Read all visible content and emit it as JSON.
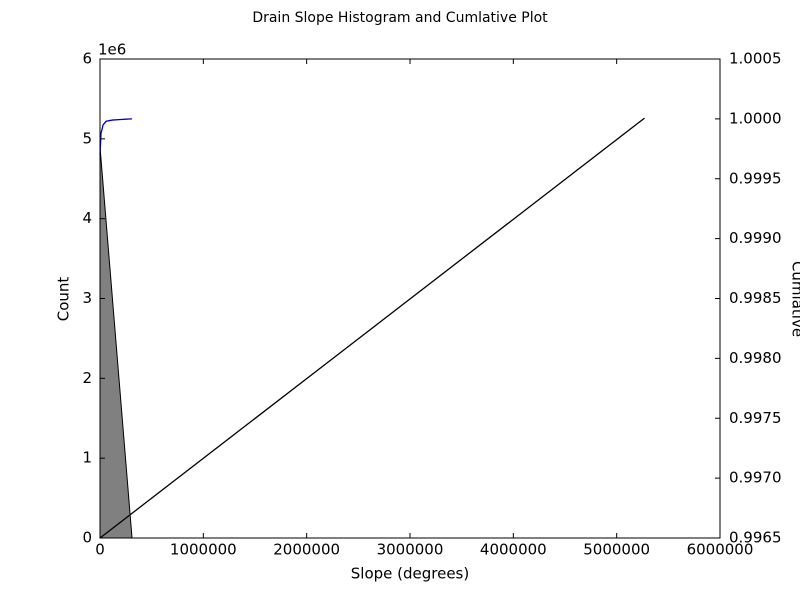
{
  "chart_data": {
    "type": "combo",
    "title": "Drain Slope Histogram and Cumlative Plot",
    "xlabel": "Slope (degrees)",
    "ylabel": "Count",
    "y2label": "Cumlative",
    "y_offset_label": "1e6",
    "xlim": [
      0,
      6000000
    ],
    "xticks": [
      0,
      1000000,
      2000000,
      3000000,
      4000000,
      5000000,
      6000000
    ],
    "ylim": [
      0,
      6000000
    ],
    "yticks": [
      {
        "value": 0,
        "label": "0"
      },
      {
        "value": 1000000,
        "label": "1"
      },
      {
        "value": 2000000,
        "label": "2"
      },
      {
        "value": 3000000,
        "label": "3"
      },
      {
        "value": 4000000,
        "label": "4"
      },
      {
        "value": 5000000,
        "label": "5"
      },
      {
        "value": 6000000,
        "label": "6"
      }
    ],
    "y2lim": [
      0.9965,
      1.0005
    ],
    "y2ticks": [
      0.9965,
      {
        "value": 0.997,
        "label": "0.9970"
      },
      0.9975,
      {
        "value": 0.998,
        "label": "0.9980"
      },
      0.9985,
      {
        "value": 0.999,
        "label": "0.9990"
      },
      0.9995,
      {
        "value": 1,
        "label": "1.0000"
      },
      1.0005
    ],
    "series": [
      {
        "kind": "area",
        "color": "#808080",
        "x": [
          0,
          0,
          310000
        ],
        "values": [
          0,
          4900000,
          0
        ]
      },
      {
        "kind": "line",
        "color": "#000000",
        "x": [
          0,
          5270000
        ],
        "values": [
          0,
          5260000
        ]
      },
      {
        "kind": "line",
        "color": "#0000cc",
        "axis": "y2",
        "x": [
          0,
          10000,
          30000,
          60000,
          120000,
          200000,
          310000
        ],
        "values": [
          0.9997,
          0.99988,
          0.99995,
          0.99998,
          0.99999,
          0.999995,
          1.0
        ]
      }
    ]
  }
}
